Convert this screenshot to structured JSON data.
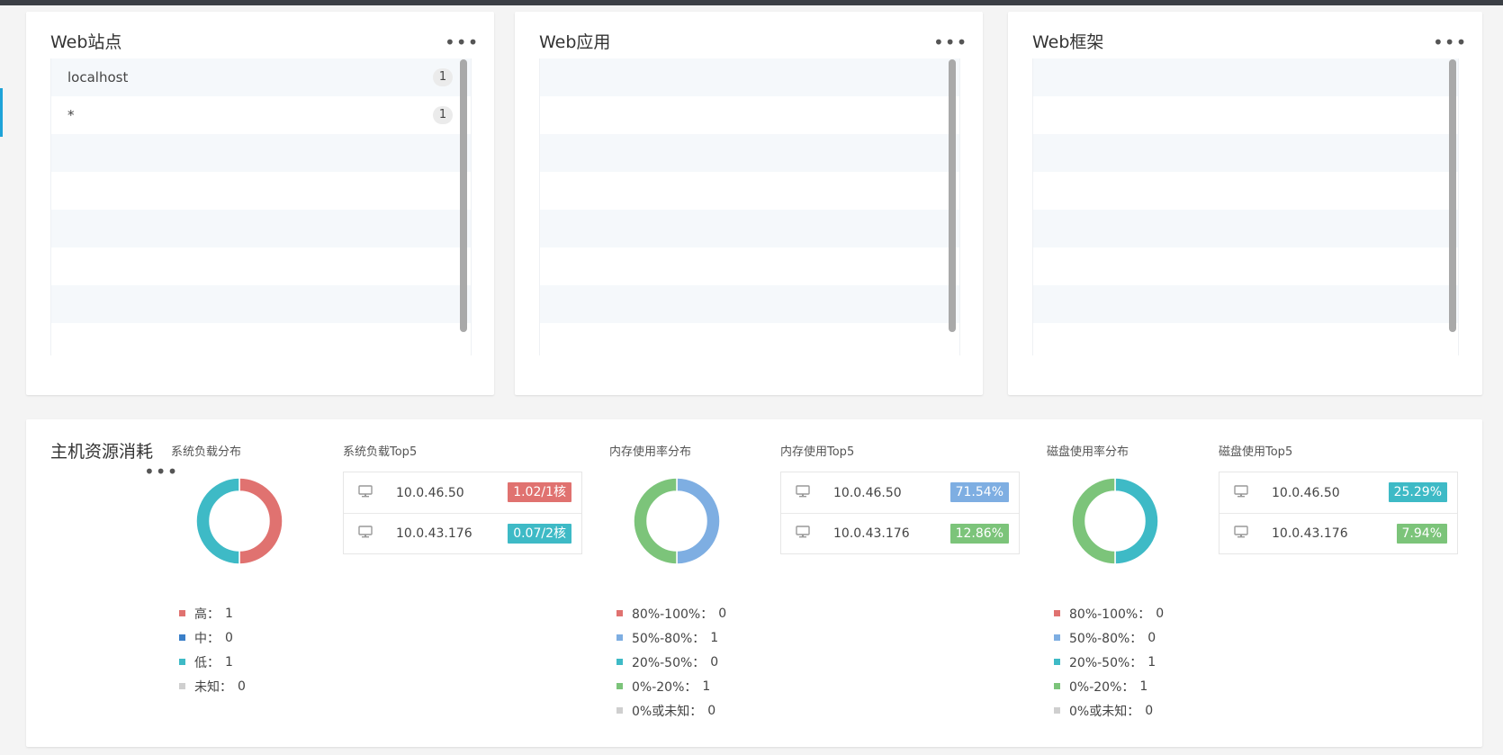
{
  "colors": {
    "red": "#e07270",
    "blue": "#7eaee2",
    "darkblue": "#3a7fc8",
    "teal": "#3ebac6",
    "green": "#7cc47a",
    "gray": "#cfcfcf"
  },
  "web_sites": {
    "title": "Web站点",
    "items": [
      {
        "name": "localhost",
        "count": "1"
      },
      {
        "name": "*",
        "count": "1"
      }
    ]
  },
  "web_apps": {
    "title": "Web应用",
    "items": []
  },
  "web_frameworks": {
    "title": "Web框架",
    "items": []
  },
  "host": {
    "title": "主机资源消耗",
    "load_dist": {
      "title": "系统负载分布",
      "legend": [
        {
          "label": "高：",
          "value": "1",
          "color": "red"
        },
        {
          "label": "中：",
          "value": "0",
          "color": "darkblue"
        },
        {
          "label": "低：",
          "value": "1",
          "color": "teal"
        },
        {
          "label": "未知：",
          "value": "0",
          "color": "gray"
        }
      ]
    },
    "load_top5": {
      "title": "系统负载Top5",
      "rows": [
        {
          "ip": "10.0.46.50",
          "value": "1.02/1核",
          "color": "red"
        },
        {
          "ip": "10.0.43.176",
          "value": "0.07/2核",
          "color": "teal"
        }
      ]
    },
    "mem_dist": {
      "title": "内存使用率分布",
      "legend": [
        {
          "label": "80%-100%：",
          "value": "0",
          "color": "red"
        },
        {
          "label": "50%-80%：",
          "value": "1",
          "color": "blue"
        },
        {
          "label": "20%-50%：",
          "value": "0",
          "color": "teal"
        },
        {
          "label": "0%-20%：",
          "value": "1",
          "color": "green"
        },
        {
          "label": "0%或未知：",
          "value": "0",
          "color": "gray"
        }
      ]
    },
    "mem_top5": {
      "title": "内存使用Top5",
      "rows": [
        {
          "ip": "10.0.46.50",
          "value": "71.54%",
          "color": "blue"
        },
        {
          "ip": "10.0.43.176",
          "value": "12.86%",
          "color": "green"
        }
      ]
    },
    "disk_dist": {
      "title": "磁盘使用率分布",
      "legend": [
        {
          "label": "80%-100%：",
          "value": "0",
          "color": "red"
        },
        {
          "label": "50%-80%：",
          "value": "0",
          "color": "blue"
        },
        {
          "label": "20%-50%：",
          "value": "1",
          "color": "teal"
        },
        {
          "label": "0%-20%：",
          "value": "1",
          "color": "green"
        },
        {
          "label": "0%或未知：",
          "value": "0",
          "color": "gray"
        }
      ]
    },
    "disk_top5": {
      "title": "磁盘使用Top5",
      "rows": [
        {
          "ip": "10.0.46.50",
          "value": "25.29%",
          "color": "teal"
        },
        {
          "ip": "10.0.43.176",
          "value": "7.94%",
          "color": "green"
        }
      ]
    }
  }
}
